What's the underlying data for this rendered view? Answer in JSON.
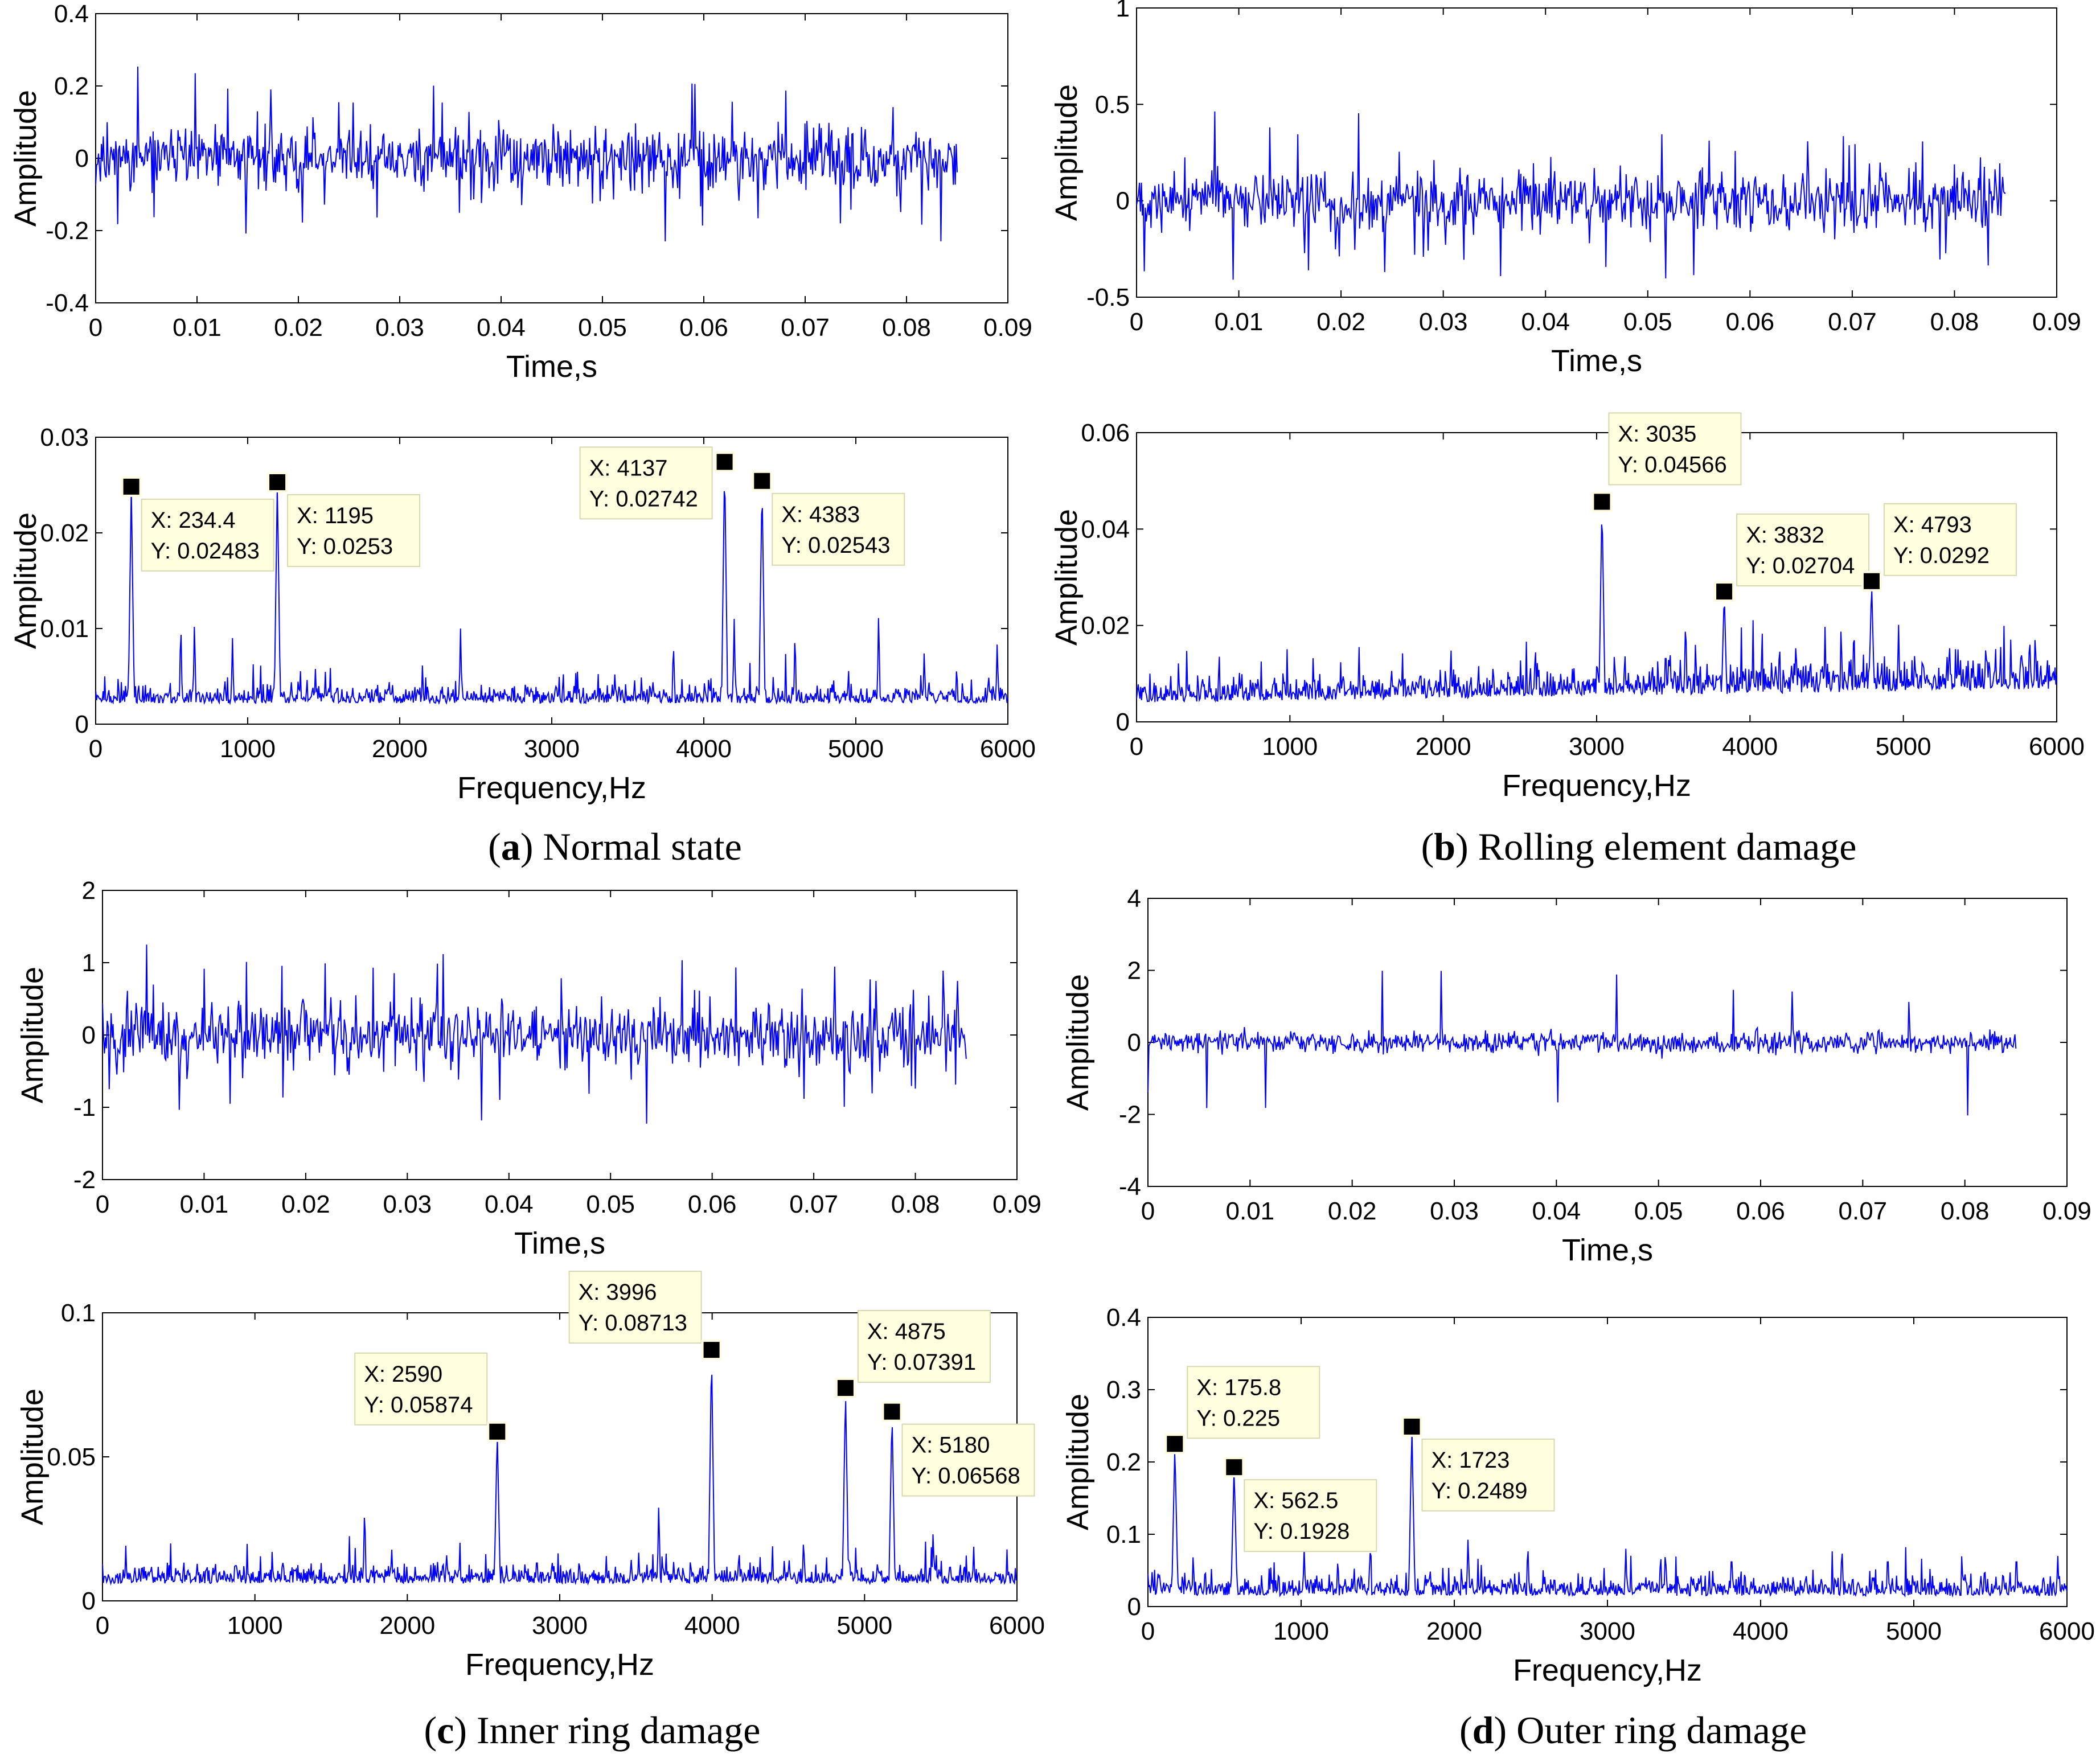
{
  "colors": {
    "trace": "#0000ff",
    "frame": "#000000",
    "datatip_bg": "#ffffe0"
  },
  "panels": [
    {
      "id": "a",
      "caption": {
        "letter": "a",
        "text": "Normal state"
      },
      "time": {
        "xlabel": "Time,s",
        "ylabel": "Amplitude",
        "xlim": [
          0,
          0.09
        ],
        "ylim": [
          -0.4,
          0.4
        ],
        "xticks": [
          0,
          0.01,
          0.02,
          0.03,
          0.04,
          0.05,
          0.06,
          0.07,
          0.08,
          0.09
        ],
        "xtick_labels": [
          "0",
          "0.01",
          "0.02",
          "0.03",
          "0.04",
          "0.05",
          "0.06",
          "0.07",
          "0.08",
          "0.09"
        ],
        "yticks": [
          -0.4,
          -0.2,
          0,
          0.2,
          0.4
        ],
        "ytick_labels": [
          "-0.4",
          "-0.2",
          "0",
          "0.2",
          "0.4"
        ],
        "signal": {
          "duration": 0.085,
          "noise": 0.06,
          "spike_ratio": 0.06,
          "spike_amp": 0.15,
          "impulse_interval": 0,
          "impulse_amp": 0,
          "seed": 11
        }
      },
      "freq": {
        "xlabel": "Frequency,Hz",
        "ylabel": "Amplitude",
        "xlim": [
          0,
          6000
        ],
        "ylim": [
          0,
          0.03
        ],
        "xticks": [
          0,
          1000,
          2000,
          3000,
          4000,
          5000,
          6000
        ],
        "xtick_labels": [
          "0",
          "1000",
          "2000",
          "3000",
          "4000",
          "5000",
          "6000"
        ],
        "yticks": [
          0,
          0.01,
          0.02,
          0.03
        ],
        "ytick_labels": [
          "0",
          "0.01",
          "0.02",
          "0.03"
        ],
        "baseline": 0.0022,
        "noise": 0.002,
        "minor_peaks": [
          [
            560,
            0.011
          ],
          [
            650,
            0.011
          ],
          [
            900,
            0.009
          ],
          [
            2400,
            0.01
          ],
          [
            3800,
            0.009
          ],
          [
            4200,
            0.011
          ],
          [
            4600,
            0.01
          ],
          [
            5150,
            0.012
          ],
          [
            5450,
            0.008
          ],
          [
            5930,
            0.009
          ]
        ],
        "seed": 21,
        "datatips": [
          {
            "x": 234.4,
            "y": 0.02483,
            "x_label": "X: 234.4",
            "y_label": "Y: 0.02483",
            "side": "right-low"
          },
          {
            "x": 1195,
            "y": 0.0253,
            "x_label": "X: 1195",
            "y_label": "Y: 0.0253",
            "side": "right-low"
          },
          {
            "x": 4137,
            "y": 0.02742,
            "x_label": "X: 4137",
            "y_label": "Y: 0.02742",
            "side": "left"
          },
          {
            "x": 4383,
            "y": 0.02543,
            "x_label": "X: 4383",
            "y_label": "Y: 0.02543",
            "side": "right-low"
          }
        ]
      }
    },
    {
      "id": "b",
      "caption": {
        "letter": "b",
        "text": "Rolling element damage"
      },
      "time": {
        "xlabel": "Time,s",
        "ylabel": "Amplitude",
        "xlim": [
          0,
          0.09
        ],
        "ylim": [
          -0.5,
          1
        ],
        "xticks": [
          0,
          0.01,
          0.02,
          0.03,
          0.04,
          0.05,
          0.06,
          0.07,
          0.08,
          0.09
        ],
        "xtick_labels": [
          "0",
          "0.01",
          "0.02",
          "0.03",
          "0.04",
          "0.05",
          "0.06",
          "0.07",
          "0.08",
          "0.09"
        ],
        "yticks": [
          -0.5,
          0,
          0.5,
          1
        ],
        "ytick_labels": [
          "-0.5",
          "0",
          "0.5",
          "1"
        ],
        "signal": {
          "duration": 0.085,
          "noise": 0.11,
          "spike_ratio": 0.05,
          "spike_amp": 0.3,
          "impulse_interval": 0,
          "impulse_amp": 0,
          "seed": 33
        }
      },
      "freq": {
        "xlabel": "Frequency,Hz",
        "ylabel": "Amplitude",
        "xlim": [
          0,
          6000
        ],
        "ylim": [
          0,
          0.06
        ],
        "xticks": [
          0,
          1000,
          2000,
          3000,
          4000,
          5000,
          6000
        ],
        "xtick_labels": [
          "0",
          "1000",
          "2000",
          "3000",
          "4000",
          "5000",
          "6000"
        ],
        "yticks": [
          0,
          0.02,
          0.04,
          0.06
        ],
        "ytick_labels": [
          "0",
          "0.02",
          "0.04",
          "0.06"
        ],
        "baseline": 0.004,
        "noise": 0.005,
        "minor_peaks": [
          [
            2050,
            0.016
          ],
          [
            2600,
            0.017
          ],
          [
            3450,
            0.017
          ],
          [
            4300,
            0.018
          ],
          [
            5300,
            0.018
          ],
          [
            5860,
            0.02
          ]
        ],
        "seed": 44,
        "datatips": [
          {
            "x": 3035,
            "y": 0.04566,
            "x_label": "X: 3035",
            "y_label": "Y: 0.04566",
            "side": "above"
          },
          {
            "x": 3832,
            "y": 0.02704,
            "x_label": "X: 3832",
            "y_label": "Y: 0.02704",
            "side": "right-high"
          },
          {
            "x": 4793,
            "y": 0.0292,
            "x_label": "X: 4793",
            "y_label": "Y: 0.0292",
            "side": "right-high"
          }
        ]
      }
    },
    {
      "id": "c",
      "caption": {
        "letter": "c",
        "text": "Inner ring damage"
      },
      "time": {
        "xlabel": "Time,s",
        "ylabel": "Amplitude",
        "xlim": [
          0,
          0.09
        ],
        "ylim": [
          -2,
          2
        ],
        "xticks": [
          0,
          0.01,
          0.02,
          0.03,
          0.04,
          0.05,
          0.06,
          0.07,
          0.08,
          0.09
        ],
        "xtick_labels": [
          "0",
          "0.01",
          "0.02",
          "0.03",
          "0.04",
          "0.05",
          "0.06",
          "0.07",
          "0.08",
          "0.09"
        ],
        "yticks": [
          -2,
          -1,
          0,
          1,
          2
        ],
        "ytick_labels": [
          "-2",
          "-1",
          "0",
          "1",
          "2"
        ],
        "signal": {
          "duration": 0.085,
          "noise": 0.3,
          "spike_ratio": 0.06,
          "spike_amp": 0.75,
          "impulse_interval": 0,
          "impulse_amp": 0,
          "seed": 55
        }
      },
      "freq": {
        "xlabel": "Frequency,Hz",
        "ylabel": "Amplitude",
        "xlim": [
          0,
          6000
        ],
        "ylim": [
          0,
          0.1
        ],
        "xticks": [
          0,
          1000,
          2000,
          3000,
          4000,
          5000,
          6000
        ],
        "xtick_labels": [
          "0",
          "1000",
          "2000",
          "3000",
          "4000",
          "5000",
          "6000"
        ],
        "yticks": [
          0,
          0.05,
          0.1
        ],
        "ytick_labels": [
          "0",
          "0.05",
          "0.1"
        ],
        "baseline": 0.006,
        "noise": 0.007,
        "minor_peaks": [
          [
            1720,
            0.034
          ],
          [
            2850,
            0.017
          ],
          [
            3650,
            0.035
          ],
          [
            4600,
            0.023
          ],
          [
            5450,
            0.025
          ]
        ],
        "seed": 66,
        "datatips": [
          {
            "x": 2590,
            "y": 0.05874,
            "x_label": "X: 2590",
            "y_label": "Y: 0.05874",
            "side": "left-high"
          },
          {
            "x": 3996,
            "y": 0.08713,
            "x_label": "X: 3996",
            "y_label": "Y: 0.08713",
            "side": "left-high"
          },
          {
            "x": 4875,
            "y": 0.07391,
            "x_label": "X: 4875",
            "y_label": "Y: 0.07391",
            "side": "right-high"
          },
          {
            "x": 5180,
            "y": 0.06568,
            "x_label": "X: 5180",
            "y_label": "Y: 0.06568",
            "side": "right-low"
          }
        ]
      }
    },
    {
      "id": "d",
      "caption": {
        "letter": "d",
        "text": "Outer ring damage"
      },
      "time": {
        "xlabel": "Time,s",
        "ylabel": "Amplitude",
        "xlim": [
          0,
          0.09
        ],
        "ylim": [
          -4,
          4
        ],
        "xticks": [
          0,
          0.01,
          0.02,
          0.03,
          0.04,
          0.05,
          0.06,
          0.07,
          0.08,
          0.09
        ],
        "xtick_labels": [
          "0",
          "0.01",
          "0.02",
          "0.03",
          "0.04",
          "0.05",
          "0.06",
          "0.07",
          "0.08",
          "0.09"
        ],
        "yticks": [
          -4,
          -2,
          0,
          2,
          4
        ],
        "ytick_labels": [
          "-4",
          "-2",
          "0",
          "2",
          "4"
        ],
        "signal": {
          "duration": 0.085,
          "noise": 0.2,
          "spike_ratio": 0.0,
          "spike_amp": 0,
          "impulse_interval": 0.00573,
          "impulse_amp": 1.8,
          "seed": 77
        }
      },
      "freq": {
        "xlabel": "Frequency,Hz",
        "ylabel": "Amplitude",
        "xlim": [
          0,
          6000
        ],
        "ylim": [
          0,
          0.4
        ],
        "xticks": [
          0,
          1000,
          2000,
          3000,
          4000,
          5000,
          6000
        ],
        "xtick_labels": [
          "0",
          "1000",
          "2000",
          "3000",
          "4000",
          "5000",
          "6000"
        ],
        "yticks": [
          0,
          0.1,
          0.2,
          0.3,
          0.4
        ],
        "ytick_labels": [
          "0",
          "0.1",
          "0.2",
          "0.3",
          "0.4"
        ],
        "baseline": 0.015,
        "noise": 0.03,
        "minor_peaks": [
          [
            1020,
            0.08
          ],
          [
            1240,
            0.07
          ],
          [
            1450,
            0.08
          ],
          [
            2090,
            0.1
          ],
          [
            2480,
            0.09
          ],
          [
            3120,
            0.08
          ],
          [
            3810,
            0.08
          ],
          [
            4830,
            0.08
          ],
          [
            5670,
            0.08
          ],
          [
            5940,
            0.07
          ]
        ],
        "seed": 88,
        "datatips": [
          {
            "x": 175.8,
            "y": 0.225,
            "x_label": "X: 175.8",
            "y_label": "Y: 0.225",
            "side": "right-high"
          },
          {
            "x": 562.5,
            "y": 0.1928,
            "x_label": "X: 562.5",
            "y_label": "Y: 0.1928",
            "side": "right-low"
          },
          {
            "x": 1723,
            "y": 0.2489,
            "x_label": "X: 1723",
            "y_label": "Y: 0.2489",
            "side": "right-low"
          }
        ]
      }
    }
  ],
  "chart_data": [
    {
      "type": "line",
      "title": "",
      "xlabel": "Time,s",
      "ylabel": "Amplitude",
      "xlim": [
        0,
        0.09
      ],
      "ylim": [
        -0.4,
        0.4
      ],
      "series": [
        {
          "values": "vibration signal, approx. ±0.15 random, 0–0.085 s"
        }
      ]
    },
    {
      "type": "line",
      "title": "",
      "xlabel": "Frequency,Hz",
      "ylabel": "Amplitude",
      "xlim": [
        0,
        6000
      ],
      "ylim": [
        0,
        0.03
      ],
      "peaks": [
        [
          234.4,
          0.02483
        ],
        [
          1195,
          0.0253
        ],
        [
          4137,
          0.02742
        ],
        [
          4383,
          0.02543
        ]
      ]
    },
    {
      "type": "line",
      "title": "",
      "xlabel": "Time,s",
      "ylabel": "Amplitude",
      "xlim": [
        0,
        0.09
      ],
      "ylim": [
        -0.5,
        1
      ],
      "series": [
        {
          "values": "vibration signal, approx. ±0.3 random, 0–0.085 s"
        }
      ]
    },
    {
      "type": "line",
      "title": "",
      "xlabel": "Frequency,Hz",
      "ylabel": "Amplitude",
      "xlim": [
        0,
        6000
      ],
      "ylim": [
        0,
        0.06
      ],
      "peaks": [
        [
          3035,
          0.04566
        ],
        [
          3832,
          0.02704
        ],
        [
          4793,
          0.0292
        ]
      ]
    },
    {
      "type": "line",
      "title": "",
      "xlabel": "Time,s",
      "ylabel": "Amplitude",
      "xlim": [
        0,
        0.09
      ],
      "ylim": [
        -2,
        2
      ],
      "series": [
        {
          "values": "vibration signal, approx. ±1 random, 0–0.085 s"
        }
      ]
    },
    {
      "type": "line",
      "title": "",
      "xlabel": "Frequency,Hz",
      "ylabel": "Amplitude",
      "xlim": [
        0,
        6000
      ],
      "ylim": [
        0,
        0.1
      ],
      "peaks": [
        [
          2590,
          0.05874
        ],
        [
          3996,
          0.08713
        ],
        [
          4875,
          0.07391
        ],
        [
          5180,
          0.06568
        ]
      ]
    },
    {
      "type": "line",
      "title": "",
      "xlabel": "Time,s",
      "ylabel": "Amplitude",
      "xlim": [
        0,
        0.09
      ],
      "ylim": [
        -4,
        4
      ],
      "series": [
        {
          "values": "impulsive vibration signal, approx. ±2.5, 0–0.085 s"
        }
      ]
    },
    {
      "type": "line",
      "title": "",
      "xlabel": "Frequency,Hz",
      "ylabel": "Amplitude",
      "xlim": [
        0,
        6000
      ],
      "ylim": [
        0,
        0.4
      ],
      "peaks": [
        [
          175.8,
          0.225
        ],
        [
          562.5,
          0.1928
        ],
        [
          1723,
          0.2489
        ]
      ]
    }
  ]
}
